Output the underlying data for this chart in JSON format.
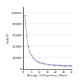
{
  "title": "",
  "xlabel": "Average Life Expectancy (Years)",
  "ylabel": "Cost/LYG",
  "background_color": "#ffffff",
  "line_color": "#8888bb",
  "marker_color": "#8888bb",
  "xlim": [
    0,
    30
  ],
  "ylim": [
    0,
    1100000
  ],
  "ytick_vals": [
    0,
    200000,
    400000,
    600000,
    800000,
    1000000
  ],
  "ytick_labels": [
    "0",
    "200000",
    "400000",
    "600000",
    "800000",
    "1000000"
  ],
  "xticks": [
    0,
    5,
    10,
    15,
    20,
    25,
    30
  ],
  "x": [
    1,
    2,
    3,
    4,
    5,
    6,
    7,
    8,
    9,
    10,
    11,
    12,
    13,
    14,
    15,
    16,
    17,
    18,
    19,
    20,
    21,
    22,
    23,
    24,
    25,
    26,
    27,
    28,
    29,
    30
  ],
  "y": [
    950000,
    580000,
    400000,
    300000,
    240000,
    200000,
    170000,
    148000,
    130000,
    118000,
    108000,
    100000,
    94000,
    88000,
    84000,
    80000,
    77000,
    74000,
    71000,
    69000,
    67000,
    65000,
    63000,
    62000,
    61000,
    60000,
    59000,
    58500,
    58000,
    57500
  ]
}
